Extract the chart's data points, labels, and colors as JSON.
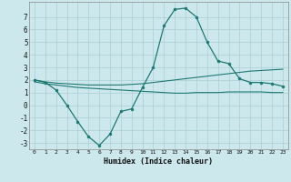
{
  "xlabel": "Humidex (Indice chaleur)",
  "bg_color": "#cce8ed",
  "line_color": "#1f7872",
  "grid_color": "#aacdd4",
  "xlim": [
    -0.5,
    23.5
  ],
  "ylim": [
    -3.5,
    8.2
  ],
  "xticks": [
    0,
    1,
    2,
    3,
    4,
    5,
    6,
    7,
    8,
    9,
    10,
    11,
    12,
    13,
    14,
    15,
    16,
    17,
    18,
    19,
    20,
    21,
    22,
    23
  ],
  "yticks": [
    -3,
    -2,
    -1,
    0,
    1,
    2,
    3,
    4,
    5,
    6,
    7
  ],
  "line1_x": [
    0,
    1,
    2,
    3,
    4,
    5,
    6,
    7,
    8,
    9,
    10,
    11,
    12,
    13,
    14,
    15,
    16,
    17,
    18,
    19,
    20,
    21,
    22,
    23
  ],
  "line1_y": [
    2.0,
    1.8,
    1.2,
    0.0,
    -1.3,
    -2.5,
    -3.2,
    -2.3,
    -0.5,
    -0.3,
    1.4,
    3.0,
    6.3,
    7.6,
    7.7,
    7.0,
    5.0,
    3.5,
    3.3,
    2.1,
    1.8,
    1.8,
    1.7,
    1.5
  ],
  "line2_x": [
    0,
    1,
    2,
    3,
    4,
    5,
    6,
    7,
    8,
    9,
    10,
    11,
    12,
    13,
    14,
    15,
    16,
    17,
    18,
    19,
    20,
    21,
    22,
    23
  ],
  "line2_y": [
    2.0,
    1.85,
    1.75,
    1.7,
    1.65,
    1.6,
    1.6,
    1.6,
    1.6,
    1.65,
    1.7,
    1.8,
    1.9,
    2.0,
    2.1,
    2.2,
    2.3,
    2.4,
    2.5,
    2.6,
    2.7,
    2.75,
    2.8,
    2.85
  ],
  "line3_x": [
    0,
    1,
    2,
    3,
    4,
    5,
    6,
    7,
    8,
    9,
    10,
    11,
    12,
    13,
    14,
    15,
    16,
    17,
    18,
    19,
    20,
    21,
    22,
    23
  ],
  "line3_y": [
    1.85,
    1.7,
    1.6,
    1.5,
    1.4,
    1.35,
    1.3,
    1.25,
    1.2,
    1.15,
    1.1,
    1.05,
    1.0,
    0.95,
    0.95,
    1.0,
    1.0,
    1.0,
    1.05,
    1.05,
    1.05,
    1.05,
    1.0,
    1.0
  ]
}
